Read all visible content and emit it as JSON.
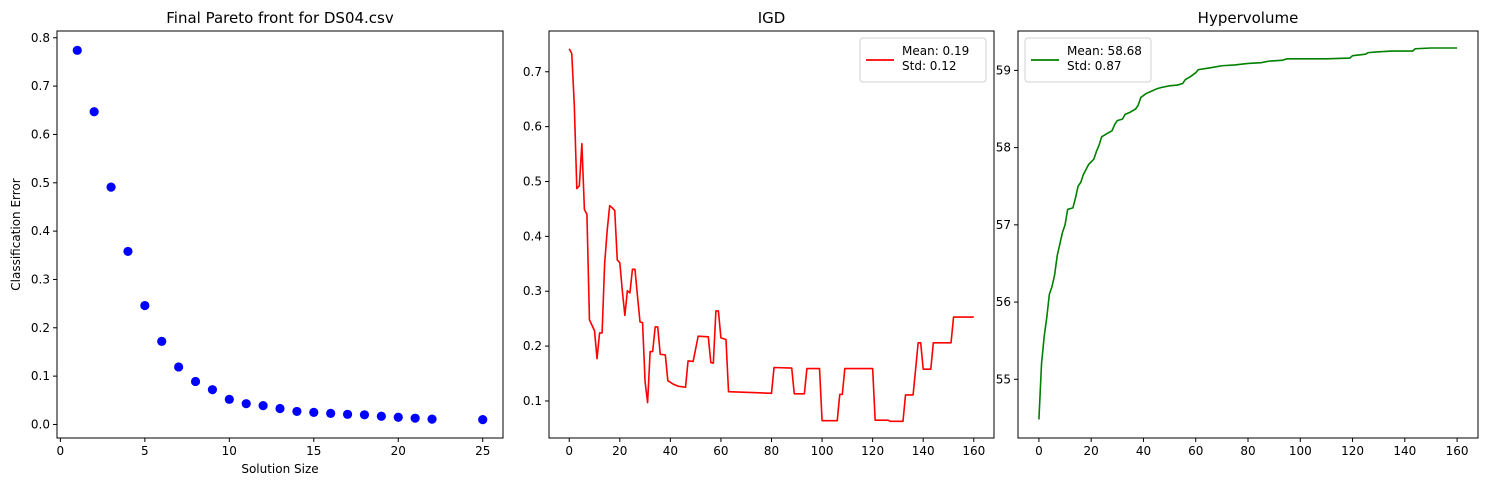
{
  "chart_data": [
    {
      "type": "scatter",
      "title": "Final Pareto front for DS04.csv",
      "xlabel": "Solution Size",
      "ylabel": "Classification Error",
      "xlim": [
        -0.2,
        26.2
      ],
      "ylim": [
        -0.028,
        0.814
      ],
      "xticks": [
        0,
        5,
        10,
        15,
        20,
        25
      ],
      "yticks": [
        0.0,
        0.1,
        0.2,
        0.3,
        0.4,
        0.5,
        0.6,
        0.7,
        0.8
      ],
      "ytick_labels": [
        "0.0",
        "0.1",
        "0.2",
        "0.3",
        "0.4",
        "0.5",
        "0.6",
        "0.7",
        "0.8"
      ],
      "color": "#0000ff",
      "points": [
        [
          1,
          0.774
        ],
        [
          2,
          0.647
        ],
        [
          3,
          0.491
        ],
        [
          4,
          0.358
        ],
        [
          5,
          0.246
        ],
        [
          6,
          0.172
        ],
        [
          7,
          0.119
        ],
        [
          8,
          0.089
        ],
        [
          9,
          0.072
        ],
        [
          10,
          0.052
        ],
        [
          11,
          0.043
        ],
        [
          12,
          0.039
        ],
        [
          13,
          0.033
        ],
        [
          14,
          0.027
        ],
        [
          15,
          0.025
        ],
        [
          16,
          0.023
        ],
        [
          17,
          0.021
        ],
        [
          18,
          0.02
        ],
        [
          19,
          0.017
        ],
        [
          20,
          0.015
        ],
        [
          21,
          0.013
        ],
        [
          22,
          0.011
        ],
        [
          25,
          0.01
        ]
      ]
    },
    {
      "type": "line",
      "title": "IGD",
      "xlabel": "",
      "ylabel": "",
      "xlim": [
        -8,
        168
      ],
      "ylim": [
        0.0325,
        0.7743
      ],
      "xticks": [
        0,
        20,
        40,
        60,
        80,
        100,
        120,
        140,
        160
      ],
      "yticks": [
        0.1,
        0.2,
        0.3,
        0.4,
        0.5,
        0.6,
        0.7
      ],
      "ytick_labels": [
        "0.1",
        "0.2",
        "0.3",
        "0.4",
        "0.5",
        "0.6",
        "0.7"
      ],
      "legend": {
        "placement": "upper-right",
        "lines": [
          "Mean: 0.19",
          "Std: 0.12"
        ]
      },
      "series": [
        {
          "color": "#ff0000",
          "points": [
            [
              0,
              0.742
            ],
            [
              1,
              0.733
            ],
            [
              2,
              0.64
            ],
            [
              3,
              0.487
            ],
            [
              4,
              0.492
            ],
            [
              5,
              0.569
            ],
            [
              6,
              0.449
            ],
            [
              7,
              0.44
            ],
            [
              8,
              0.248
            ],
            [
              9,
              0.238
            ],
            [
              10,
              0.228
            ],
            [
              11,
              0.177
            ],
            [
              12,
              0.224
            ],
            [
              13,
              0.224
            ],
            [
              14,
              0.35
            ],
            [
              15,
              0.41
            ],
            [
              16,
              0.456
            ],
            [
              17,
              0.452
            ],
            [
              18,
              0.447
            ],
            [
              19,
              0.357
            ],
            [
              20,
              0.352
            ],
            [
              21,
              0.301
            ],
            [
              22,
              0.256
            ],
            [
              23,
              0.301
            ],
            [
              24,
              0.297
            ],
            [
              25,
              0.34
            ],
            [
              26,
              0.34
            ],
            [
              27,
              0.291
            ],
            [
              28,
              0.244
            ],
            [
              29,
              0.243
            ],
            [
              30,
              0.135
            ],
            [
              31,
              0.097
            ],
            [
              32,
              0.19
            ],
            [
              33,
              0.19
            ],
            [
              34,
              0.235
            ],
            [
              35,
              0.235
            ],
            [
              36,
              0.185
            ],
            [
              38,
              0.184
            ],
            [
              39,
              0.137
            ],
            [
              41,
              0.131
            ],
            [
              43,
              0.127
            ],
            [
              46,
              0.125
            ],
            [
              47,
              0.173
            ],
            [
              49,
              0.172
            ],
            [
              51,
              0.218
            ],
            [
              55,
              0.217
            ],
            [
              56,
              0.17
            ],
            [
              57,
              0.169
            ],
            [
              58,
              0.264
            ],
            [
              59,
              0.264
            ],
            [
              60,
              0.215
            ],
            [
              62,
              0.212
            ],
            [
              63,
              0.117
            ],
            [
              80,
              0.114
            ],
            [
              81,
              0.161
            ],
            [
              88,
              0.16
            ],
            [
              89,
              0.113
            ],
            [
              93,
              0.113
            ],
            [
              94,
              0.159
            ],
            [
              99,
              0.159
            ],
            [
              100,
              0.064
            ],
            [
              106,
              0.064
            ],
            [
              107,
              0.112
            ],
            [
              108,
              0.112
            ],
            [
              109,
              0.159
            ],
            [
              120,
              0.159
            ],
            [
              121,
              0.065
            ],
            [
              126,
              0.065
            ],
            [
              127,
              0.063
            ],
            [
              132,
              0.063
            ],
            [
              133,
              0.111
            ],
            [
              136,
              0.111
            ],
            [
              137,
              0.158
            ],
            [
              138,
              0.206
            ],
            [
              139,
              0.206
            ],
            [
              140,
              0.158
            ],
            [
              143,
              0.158
            ],
            [
              144,
              0.206
            ],
            [
              151,
              0.206
            ],
            [
              152,
              0.253
            ],
            [
              160,
              0.253
            ]
          ]
        }
      ]
    },
    {
      "type": "line",
      "title": "Hypervolume",
      "xlabel": "",
      "ylabel": "",
      "xlim": [
        -8,
        168
      ],
      "ylim": [
        54.24,
        59.51
      ],
      "xticks": [
        0,
        20,
        40,
        60,
        80,
        100,
        120,
        140,
        160
      ],
      "yticks": [
        55,
        56,
        57,
        58,
        59
      ],
      "ytick_labels": [
        "55",
        "56",
        "57",
        "58",
        "59"
      ],
      "legend": {
        "placement": "upper-left",
        "lines": [
          "Mean: 58.68",
          "Std: 0.87"
        ]
      },
      "series": [
        {
          "color": "#008000",
          "points": [
            [
              0,
              54.48
            ],
            [
              1,
              55.2
            ],
            [
              2,
              55.55
            ],
            [
              3,
              55.8
            ],
            [
              4,
              56.1
            ],
            [
              5,
              56.2
            ],
            [
              6,
              56.35
            ],
            [
              7,
              56.6
            ],
            [
              8,
              56.75
            ],
            [
              9,
              56.9
            ],
            [
              10,
              57.0
            ],
            [
              11,
              57.2
            ],
            [
              13,
              57.22
            ],
            [
              14,
              57.35
            ],
            [
              15,
              57.5
            ],
            [
              16,
              57.55
            ],
            [
              17,
              57.65
            ],
            [
              19,
              57.78
            ],
            [
              21,
              57.85
            ],
            [
              22,
              57.95
            ],
            [
              23,
              58.03
            ],
            [
              24,
              58.14
            ],
            [
              26,
              58.18
            ],
            [
              28,
              58.22
            ],
            [
              29,
              58.3
            ],
            [
              30,
              58.35
            ],
            [
              32,
              58.37
            ],
            [
              33,
              58.43
            ],
            [
              35,
              58.46
            ],
            [
              37,
              58.5
            ],
            [
              38,
              58.55
            ],
            [
              39,
              58.65
            ],
            [
              41,
              58.7
            ],
            [
              43,
              58.73
            ],
            [
              45,
              58.76
            ],
            [
              47,
              58.78
            ],
            [
              50,
              58.8
            ],
            [
              53,
              58.81
            ],
            [
              55,
              58.83
            ],
            [
              56,
              58.88
            ],
            [
              58,
              58.92
            ],
            [
              60,
              58.97
            ],
            [
              61,
              59.01
            ],
            [
              65,
              59.03
            ],
            [
              70,
              59.06
            ],
            [
              75,
              59.07
            ],
            [
              80,
              59.09
            ],
            [
              85,
              59.1
            ],
            [
              88,
              59.12
            ],
            [
              93,
              59.13
            ],
            [
              95,
              59.15
            ],
            [
              100,
              59.15
            ],
            [
              110,
              59.15
            ],
            [
              119,
              59.16
            ],
            [
              120,
              59.19
            ],
            [
              125,
              59.21
            ],
            [
              126,
              59.23
            ],
            [
              130,
              59.24
            ],
            [
              135,
              59.25
            ],
            [
              143,
              59.25
            ],
            [
              144,
              59.28
            ],
            [
              150,
              59.29
            ],
            [
              155,
              59.29
            ],
            [
              160,
              59.29
            ]
          ]
        }
      ]
    }
  ]
}
